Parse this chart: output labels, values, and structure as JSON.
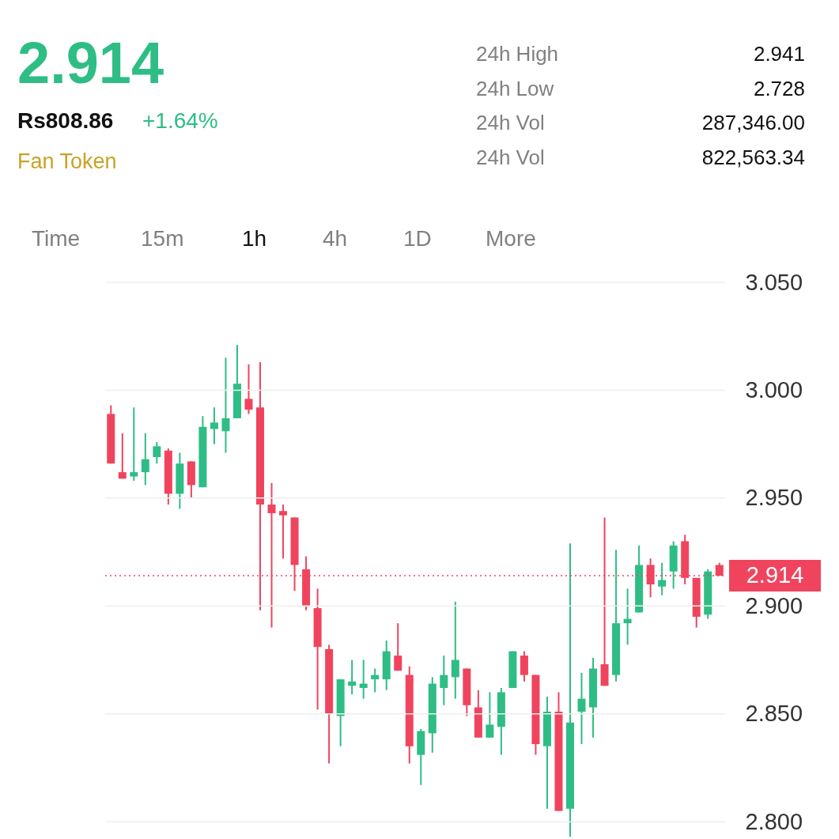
{
  "chart_data": {
    "type": "candlestick",
    "categories": [
      null,
      null,
      null,
      null,
      null,
      null,
      null,
      null,
      null,
      null,
      null,
      null,
      null,
      null,
      null,
      null,
      null,
      null,
      null,
      null,
      null,
      null,
      null,
      null,
      null,
      null,
      null,
      null,
      null,
      null,
      null,
      null,
      null,
      null,
      null,
      null,
      null,
      null,
      null,
      null,
      null,
      null,
      null,
      null,
      null,
      null,
      null,
      null,
      null,
      null,
      null,
      null,
      null,
      null
    ],
    "ohlc": [
      [
        2.989,
        2.993,
        2.966,
        2.966
      ],
      [
        2.962,
        2.98,
        2.959,
        2.959
      ],
      [
        2.96,
        2.992,
        2.958,
        2.962
      ],
      [
        2.962,
        2.98,
        2.956,
        2.968
      ],
      [
        2.969,
        2.976,
        2.966,
        2.974
      ],
      [
        2.972,
        2.973,
        2.947,
        2.952
      ],
      [
        2.952,
        2.971,
        2.945,
        2.966
      ],
      [
        2.967,
        2.967,
        2.95,
        2.956
      ],
      [
        2.955,
        2.988,
        2.955,
        2.983
      ],
      [
        2.982,
        2.992,
        2.975,
        2.985
      ],
      [
        2.981,
        3.015,
        2.971,
        2.987
      ],
      [
        2.987,
        3.021,
        2.987,
        3.003
      ],
      [
        2.996,
        3.012,
        2.989,
        2.991
      ],
      [
        2.992,
        3.013,
        2.898,
        2.947
      ],
      [
        2.947,
        2.957,
        2.89,
        2.943
      ],
      [
        2.944,
        2.947,
        2.922,
        2.942
      ],
      [
        2.941,
        2.941,
        2.907,
        2.919
      ],
      [
        2.917,
        2.923,
        2.898,
        2.9
      ],
      [
        2.899,
        2.908,
        2.852,
        2.881
      ],
      [
        2.88,
        2.882,
        2.827,
        2.85
      ],
      [
        2.849,
        2.866,
        2.835,
        2.866
      ],
      [
        2.863,
        2.875,
        2.859,
        2.865
      ],
      [
        2.862,
        2.875,
        2.857,
        2.864
      ],
      [
        2.866,
        2.871,
        2.86,
        2.868
      ],
      [
        2.866,
        2.884,
        2.861,
        2.879
      ],
      [
        2.877,
        2.892,
        2.87,
        2.87
      ],
      [
        2.868,
        2.872,
        2.827,
        2.835
      ],
      [
        2.831,
        2.843,
        2.817,
        2.842
      ],
      [
        2.841,
        2.867,
        2.832,
        2.864
      ],
      [
        2.862,
        2.877,
        2.854,
        2.868
      ],
      [
        2.867,
        2.902,
        2.857,
        2.875
      ],
      [
        2.871,
        2.871,
        2.849,
        2.854
      ],
      [
        2.853,
        2.861,
        2.839,
        2.839
      ],
      [
        2.839,
        2.86,
        2.839,
        2.845
      ],
      [
        2.844,
        2.862,
        2.831,
        2.86
      ],
      [
        2.862,
        2.879,
        2.862,
        2.879
      ],
      [
        2.877,
        2.879,
        2.865,
        2.868
      ],
      [
        2.868,
        2.868,
        2.831,
        2.836
      ],
      [
        2.835,
        2.858,
        2.806,
        2.851
      ],
      [
        2.851,
        2.86,
        2.805,
        2.805
      ],
      [
        2.806,
        2.929,
        2.793,
        2.846
      ],
      [
        2.851,
        2.869,
        2.836,
        2.857
      ],
      [
        2.853,
        2.876,
        2.839,
        2.871
      ],
      [
        2.873,
        2.941,
        2.863,
        2.863
      ],
      [
        2.868,
        2.926,
        2.865,
        2.892
      ],
      [
        2.892,
        2.908,
        2.882,
        2.894
      ],
      [
        2.897,
        2.928,
        2.897,
        2.919
      ],
      [
        2.919,
        2.922,
        2.904,
        2.91
      ],
      [
        2.909,
        2.92,
        2.905,
        2.912
      ],
      [
        2.916,
        2.93,
        2.908,
        2.928
      ],
      [
        2.93,
        2.933,
        2.91,
        2.913
      ],
      [
        2.913,
        2.913,
        2.89,
        2.895
      ],
      [
        2.896,
        2.917,
        2.894,
        2.916
      ],
      [
        2.919,
        2.92,
        2.914,
        2.914
      ]
    ],
    "colors": [
      "#f0445e",
      "#f0445e",
      "#2ebd85",
      "#2ebd85",
      "#2ebd85",
      "#f0445e",
      "#2ebd85",
      "#f0445e",
      "#2ebd85",
      "#2ebd85",
      "#2ebd85",
      "#2ebd85",
      "#f0445e",
      "#f0445e",
      "#f0445e",
      "#f0445e",
      "#f0445e",
      "#f0445e",
      "#f0445e",
      "#f0445e",
      "#2ebd85",
      "#2ebd85",
      "#2ebd85",
      "#2ebd85",
      "#2ebd85",
      "#f0445e",
      "#f0445e",
      "#2ebd85",
      "#2ebd85",
      "#2ebd85",
      "#2ebd85",
      "#f0445e",
      "#f0445e",
      "#2ebd85",
      "#2ebd85",
      "#2ebd85",
      "#f0445e",
      "#f0445e",
      "#2ebd85",
      "#f0445e",
      "#2ebd85",
      "#2ebd85",
      "#2ebd85",
      "#f0445e",
      "#2ebd85",
      "#2ebd85",
      "#2ebd85",
      "#f0445e",
      "#2ebd85",
      "#2ebd85",
      "#f0445e",
      "#f0445e",
      "#2ebd85",
      "#f0445e"
    ],
    "ylim": [
      2.792,
      3.05
    ],
    "yticks": [
      {
        "value": 2.8,
        "label": "2.800"
      },
      {
        "value": 2.85,
        "label": "2.850"
      },
      {
        "value": 2.9,
        "label": "2.900"
      },
      {
        "value": 2.95,
        "label": "2.950"
      },
      {
        "value": 3.0,
        "label": "3.000"
      },
      {
        "value": 3.05,
        "label": "3.050"
      }
    ],
    "grid": "y",
    "tick_labels": "y",
    "ref_lines": [
      {
        "axis": "y",
        "value": 2.914,
        "label": "2.914",
        "color": "#f0445e",
        "line_style": "dotted"
      }
    ],
    "annotations": [
      "2.914",
      "Rs808.86",
      "+1.64%",
      "Fan Token",
      "24h High",
      "2.941",
      "24h Low",
      "2.728",
      "24h Vol",
      "287,346.00",
      "24h Vol",
      "822,563.34",
      "Time",
      "15m",
      "1h",
      "4h",
      "1D",
      "More"
    ]
  }
}
